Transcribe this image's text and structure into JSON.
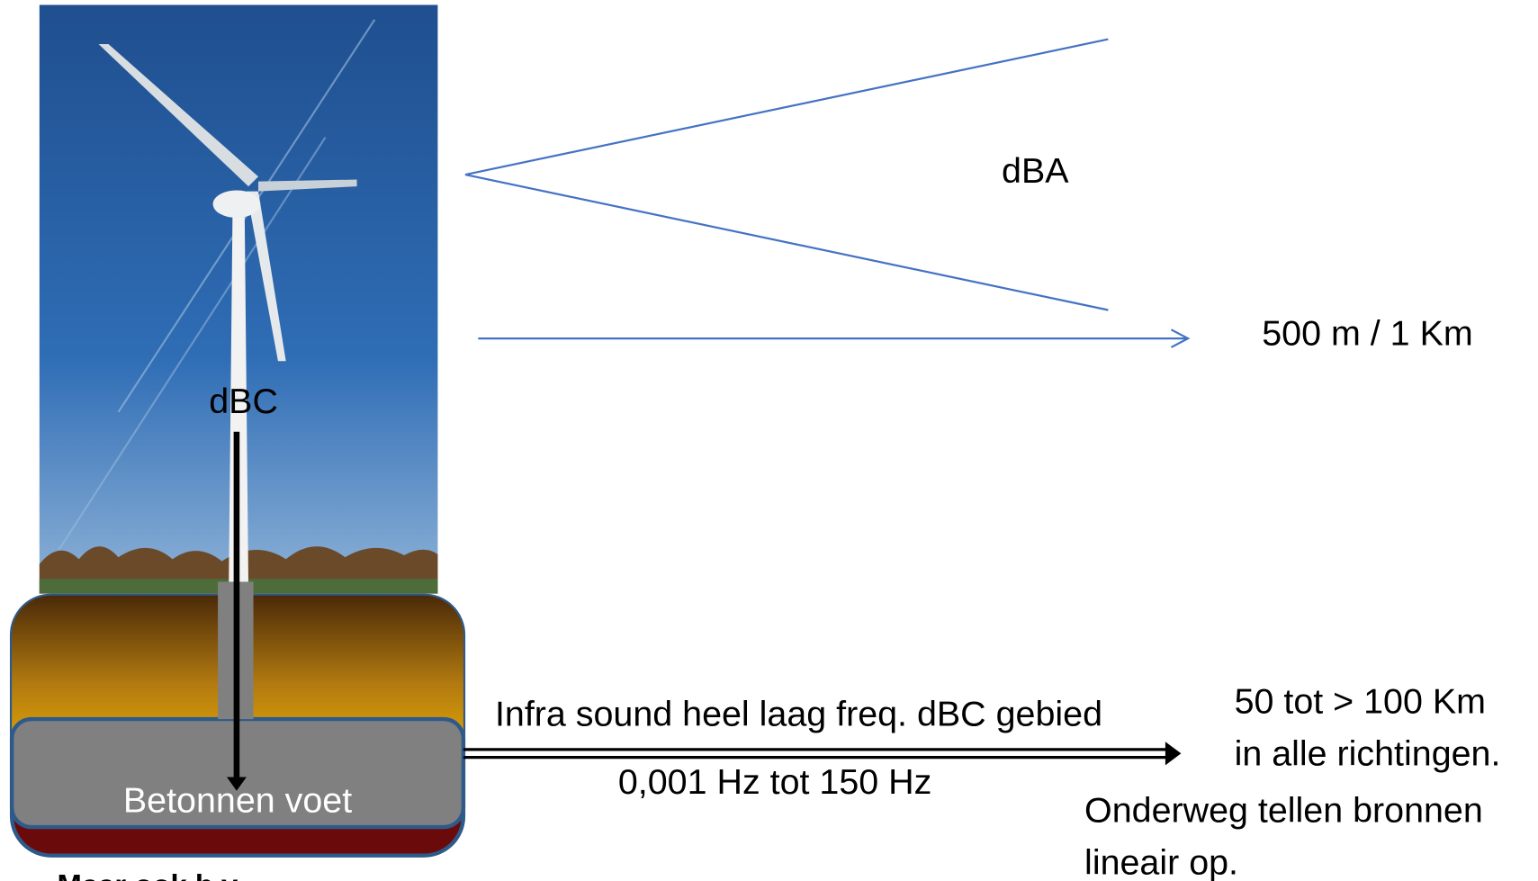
{
  "labels": {
    "dba": "dBA",
    "distance_dba": "500 m / 1 Km",
    "dbc": "dBC",
    "foundation": "Betonnen voet",
    "infra": "Infra sound heel laag freq. dBC gebied",
    "freq_range": "0,001 Hz tot 150 Hz",
    "distance_infra_1": "50 tot > 100 Km",
    "distance_infra_2": "in alle richtingen.",
    "note_1": "Onderweg tellen bronnen",
    "note_2": "lineair op.",
    "footer": "Maar ook b.v."
  }
}
